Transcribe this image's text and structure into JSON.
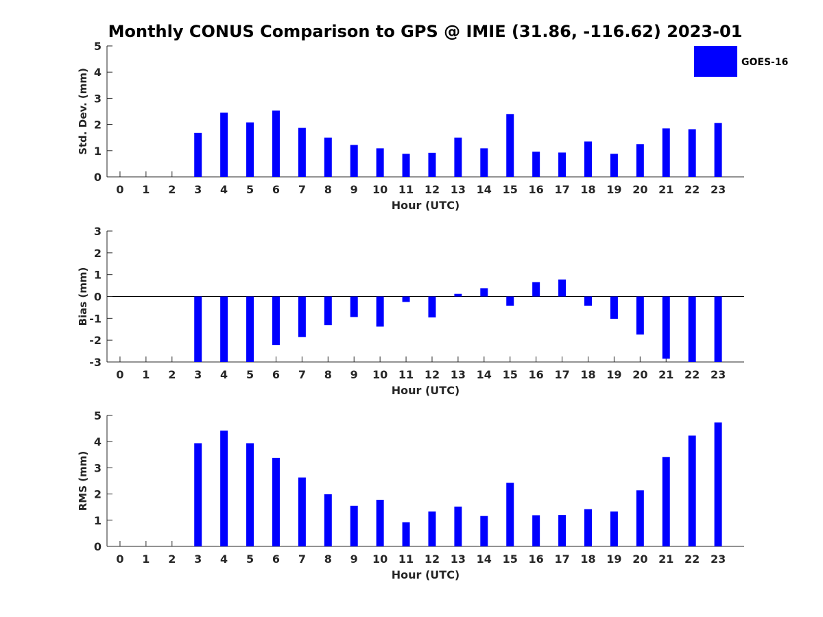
{
  "title": "Monthly CONUS Comparison to GPS @ IMIE (31.86, -116.62) 2023-01",
  "legend": {
    "label": "GOES-16",
    "color": "#0000ff",
    "placement": "top-right"
  },
  "chart_data": [
    {
      "type": "bar",
      "xlabel": "Hour (UTC)",
      "ylabel": "Std. Dev. (mm)",
      "ylim": [
        0,
        5
      ],
      "yticks": [
        0,
        1,
        2,
        3,
        4,
        5
      ],
      "categories": [
        0,
        1,
        2,
        3,
        4,
        5,
        6,
        7,
        8,
        9,
        10,
        11,
        12,
        13,
        14,
        15,
        16,
        17,
        18,
        19,
        20,
        21,
        22,
        23
      ],
      "series": [
        {
          "name": "GOES-16",
          "values": [
            null,
            null,
            null,
            1.68,
            2.45,
            2.08,
            2.53,
            1.87,
            1.5,
            1.22,
            1.09,
            0.88,
            0.92,
            1.5,
            1.09,
            2.4,
            0.96,
            0.93,
            1.35,
            0.88,
            1.25,
            1.85,
            1.82,
            2.06
          ]
        }
      ]
    },
    {
      "type": "bar",
      "xlabel": "Hour (UTC)",
      "ylabel": "Bias (mm)",
      "ylim": [
        -3,
        3
      ],
      "yticks": [
        -3,
        -2,
        -1,
        0,
        1,
        2,
        3
      ],
      "categories": [
        0,
        1,
        2,
        3,
        4,
        5,
        6,
        7,
        8,
        9,
        10,
        11,
        12,
        13,
        14,
        15,
        16,
        17,
        18,
        19,
        20,
        21,
        22,
        23
      ],
      "series": [
        {
          "name": "GOES-16",
          "values": [
            null,
            null,
            null,
            -3.0,
            -3.0,
            -3.0,
            -2.22,
            -1.86,
            -1.31,
            -0.94,
            -1.38,
            -0.25,
            -0.96,
            0.12,
            0.38,
            -0.42,
            0.66,
            0.78,
            -0.42,
            -1.02,
            -1.74,
            -2.85,
            -3.0,
            -3.0
          ]
        }
      ]
    },
    {
      "type": "bar",
      "xlabel": "Hour (UTC)",
      "ylabel": "RMS (mm)",
      "ylim": [
        0,
        5
      ],
      "yticks": [
        0,
        1,
        2,
        3,
        4,
        5
      ],
      "categories": [
        0,
        1,
        2,
        3,
        4,
        5,
        6,
        7,
        8,
        9,
        10,
        11,
        12,
        13,
        14,
        15,
        16,
        17,
        18,
        19,
        20,
        21,
        22,
        23
      ],
      "series": [
        {
          "name": "GOES-16",
          "values": [
            null,
            null,
            null,
            3.94,
            4.42,
            3.94,
            3.38,
            2.63,
            1.99,
            1.55,
            1.78,
            0.92,
            1.33,
            1.52,
            1.16,
            2.43,
            1.19,
            1.2,
            1.42,
            1.33,
            2.14,
            3.41,
            4.23,
            4.73
          ]
        }
      ]
    }
  ]
}
